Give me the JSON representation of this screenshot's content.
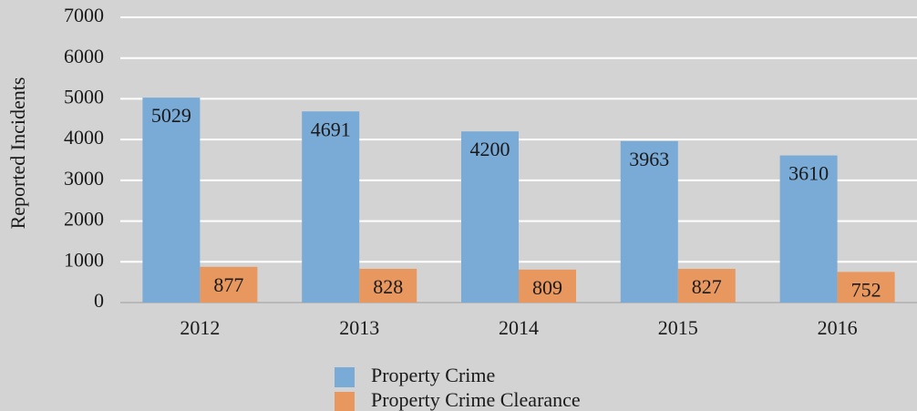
{
  "chart_data": {
    "type": "bar",
    "y_label": "Reported Incidents",
    "categories": [
      "2012",
      "2013",
      "2014",
      "2015",
      "2016"
    ],
    "series": [
      {
        "name": "Property Crime",
        "color": "#7aaad6",
        "values": [
          5029,
          4691,
          4200,
          3963,
          3610
        ]
      },
      {
        "name": "Property Crime Clearance",
        "color": "#e8985e",
        "values": [
          877,
          828,
          809,
          827,
          752
        ]
      }
    ],
    "ylim": [
      0,
      7000
    ],
    "yticks": [
      0,
      1000,
      2000,
      3000,
      4000,
      5000,
      6000,
      7000
    ],
    "grid": true,
    "legend": "bottom"
  }
}
